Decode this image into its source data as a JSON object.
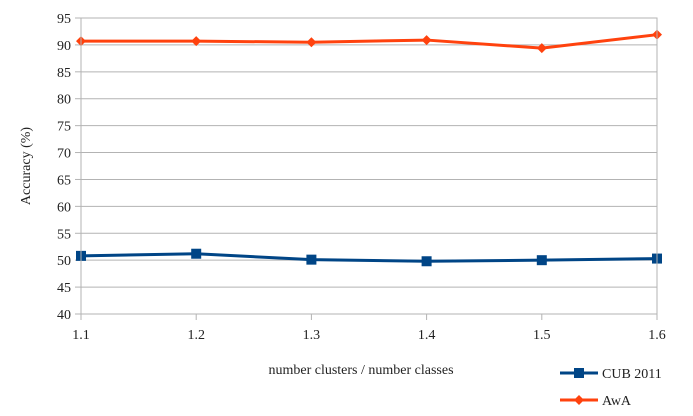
{
  "chart_data": {
    "type": "line",
    "title": "",
    "xlabel": "number clusters / number classes",
    "ylabel": "Accuracy (%)",
    "x": [
      1.1,
      1.2,
      1.3,
      1.4,
      1.5,
      1.6
    ],
    "x_tick_labels": [
      "1.1",
      "1.2",
      "1.3",
      "1.4",
      "1.5",
      "1.6"
    ],
    "ylim": [
      40,
      95
    ],
    "y_ticks": [
      40,
      45,
      50,
      55,
      60,
      65,
      70,
      75,
      80,
      85,
      90,
      95
    ],
    "grid": "horizontal",
    "legend_position": "bottom-right",
    "series": [
      {
        "name": "CUB 2011",
        "color": "#004586",
        "marker": "square",
        "values": [
          50.8,
          51.2,
          50.1,
          49.8,
          50.0,
          50.3
        ]
      },
      {
        "name": "AwA",
        "color": "#ff420e",
        "marker": "diamond",
        "values": [
          90.7,
          90.7,
          90.5,
          90.9,
          89.4,
          91.9
        ]
      }
    ]
  }
}
